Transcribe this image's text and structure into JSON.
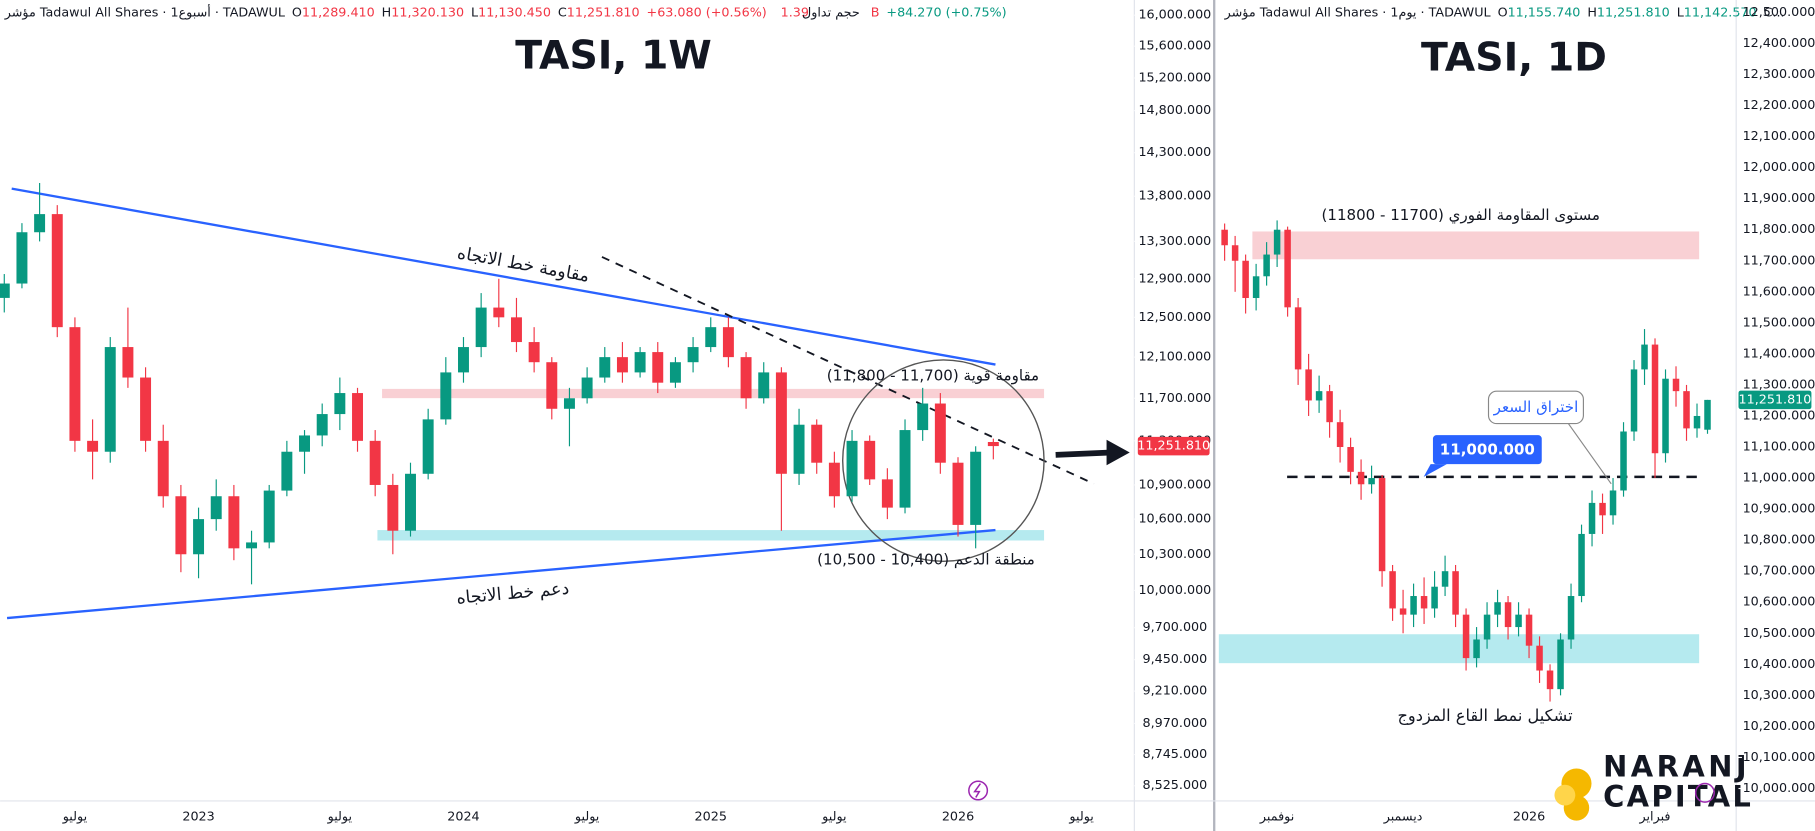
{
  "chart_data": [
    {
      "type": "candlestick",
      "title": "TASI, 1W",
      "log_scale": true,
      "grid": false,
      "up_color": "#089981",
      "down_color": "#f23645",
      "header": [
        {
          "text": "مؤشر Tadawul All Shares · 1أسبوع · TADAWUL",
          "color": "#131722"
        },
        {
          "text": "O",
          "color": "#131722"
        },
        {
          "text": "11,289.410",
          "color": "#f23645"
        },
        {
          "text": "H",
          "color": "#131722"
        },
        {
          "text": "11,320.130",
          "color": "#f23645"
        },
        {
          "text": "L",
          "color": "#131722"
        },
        {
          "text": "11,130.450",
          "color": "#f23645"
        },
        {
          "text": "C",
          "color": "#131722"
        },
        {
          "text": "11,251.810",
          "color": "#f23645"
        },
        {
          "text": "+63.080 (+0.56%)",
          "color": "#f23645"
        },
        {
          "text": "حجم تداول",
          "color": "#131722"
        },
        {
          "text": "1.39 B",
          "color": "#f23645"
        },
        {
          "text": "+84.270 (+0.75%)",
          "color": "#089981"
        }
      ],
      "categories": [
        null,
        null,
        null,
        null,
        "يوليو",
        null,
        null,
        null,
        null,
        null,
        null,
        "2023",
        null,
        null,
        null,
        null,
        null,
        null,
        null,
        "يوليو",
        null,
        null,
        null,
        null,
        null,
        null,
        "2024",
        null,
        null,
        null,
        null,
        null,
        null,
        "يوليو",
        null,
        null,
        null,
        null,
        null,
        null,
        "2025",
        null,
        null,
        null,
        null,
        null,
        null,
        "يوليو",
        null,
        null,
        null,
        null,
        null,
        null,
        "2026",
        null,
        null,
        null,
        null,
        null,
        null,
        "يوليو"
      ],
      "open": [
        12700,
        12850,
        13400,
        13600,
        12400,
        11300,
        11200,
        12200,
        11900,
        11300,
        10800,
        10300,
        10600,
        10800,
        10350,
        10400,
        10850,
        11200,
        11350,
        11550,
        11750,
        11300,
        10900,
        10500,
        11000,
        11500,
        11950,
        12200,
        12600,
        12500,
        12250,
        12050,
        11600,
        11700,
        11900,
        12100,
        11950,
        12150,
        11850,
        12050,
        12200,
        12400,
        12100,
        11700,
        11950,
        11000,
        11450,
        11100,
        10800,
        11300,
        10950,
        10700,
        11400,
        11650,
        11100,
        10550,
        11289.41,
        null,
        null,
        null,
        null,
        null
      ],
      "high": [
        12950,
        13500,
        13950,
        13700,
        12500,
        11500,
        12300,
        12600,
        12000,
        11450,
        10900,
        10700,
        10950,
        10900,
        10500,
        10900,
        11300,
        11400,
        11650,
        11900,
        11800,
        11400,
        11000,
        11100,
        11600,
        12100,
        12300,
        12750,
        12900,
        12700,
        12400,
        12100,
        11800,
        12000,
        12200,
        12250,
        12200,
        12250,
        12100,
        12300,
        12500,
        12500,
        12150,
        12050,
        12000,
        11600,
        11500,
        11200,
        11400,
        11350,
        11050,
        11500,
        11800,
        11750,
        11150,
        11250,
        11320.13,
        null,
        null,
        null,
        null,
        null
      ],
      "low": [
        12550,
        12800,
        13300,
        12300,
        11200,
        10950,
        11100,
        11800,
        11200,
        10700,
        10150,
        10100,
        10500,
        10250,
        10050,
        10350,
        10800,
        11000,
        11250,
        11400,
        11200,
        10800,
        10300,
        10450,
        10950,
        11450,
        11850,
        12100,
        12400,
        12150,
        11950,
        11500,
        11250,
        11650,
        11850,
        11850,
        11900,
        11750,
        11800,
        11950,
        12150,
        12000,
        11600,
        11650,
        10500,
        10900,
        11000,
        10700,
        10750,
        10900,
        10600,
        10650,
        11300,
        11000,
        10450,
        10350,
        11130.45,
        null,
        null,
        null,
        null,
        null
      ],
      "close": [
        12850,
        13400,
        13600,
        12400,
        11300,
        11200,
        12200,
        11900,
        11300,
        10800,
        10300,
        10600,
        10800,
        10350,
        10400,
        10850,
        11200,
        11350,
        11550,
        11750,
        11300,
        10900,
        10500,
        11000,
        11500,
        11950,
        12200,
        12600,
        12500,
        12250,
        12050,
        11600,
        11700,
        11900,
        12100,
        11950,
        12150,
        11850,
        12050,
        12200,
        12400,
        12100,
        11700,
        11950,
        11000,
        11450,
        11100,
        10800,
        11300,
        10950,
        10700,
        11400,
        11650,
        11100,
        10550,
        11200,
        11251.81,
        null,
        null,
        null,
        null,
        null
      ],
      "ylim": [
        8420,
        16200
      ],
      "yticks": [
        {
          "value": 16000,
          "label": "16,000.000"
        },
        {
          "value": 15600,
          "label": "15,600.000"
        },
        {
          "value": 15200,
          "label": "15,200.000"
        },
        {
          "value": 14800,
          "label": "14,800.000"
        },
        {
          "value": 14300,
          "label": "14,300.000"
        },
        {
          "value": 13800,
          "label": "13,800.000"
        },
        {
          "value": 13300,
          "label": "13,300.000"
        },
        {
          "value": 12900,
          "label": "12,900.000"
        },
        {
          "value": 12500,
          "label": "12,500.000"
        },
        {
          "value": 12100,
          "label": "12,100.000"
        },
        {
          "value": 11700,
          "label": "11,700.000"
        },
        {
          "value": 11300,
          "label": "11,300.000"
        },
        {
          "value": 10900,
          "label": "10,900.000"
        },
        {
          "value": 10600,
          "label": "10,600.000"
        },
        {
          "value": 10300,
          "label": "10,300.000"
        },
        {
          "value": 10000,
          "label": "10,000.000"
        },
        {
          "value": 9700,
          "label": "9,700.000"
        },
        {
          "value": 9450,
          "label": "9,450.000"
        },
        {
          "value": 9210,
          "label": "9,210.000"
        },
        {
          "value": 8970,
          "label": "8,970.000"
        },
        {
          "value": 8745,
          "label": "8,745.000"
        },
        {
          "value": 8525,
          "label": "8,525.000"
        }
      ],
      "last_price_label": "11,251.810",
      "annotations": {
        "trend_resistance": "مقاومة خط الاتجاه",
        "trend_support": "دعم خط الاتجاه",
        "strong_resistance": "مقاومة قوية (11,700 - 11,800)",
        "support_zone": "منطقة الدعم (10,400 - 10,500)"
      }
    },
    {
      "type": "candlestick",
      "title": "TASI, 1D",
      "log_scale": false,
      "grid": false,
      "up_color": "#089981",
      "down_color": "#f23645",
      "header": [
        {
          "text": "مؤشر Tadawul All Shares · 1يوم · TADAWUL",
          "color": "#131722"
        },
        {
          "text": "O",
          "color": "#131722"
        },
        {
          "text": "11,155.740",
          "color": "#089981"
        },
        {
          "text": "H",
          "color": "#131722"
        },
        {
          "text": "11,251.810",
          "color": "#089981"
        },
        {
          "text": "L",
          "color": "#131722"
        },
        {
          "text": "11,142.570",
          "color": "#089981"
        },
        {
          "text": "C...",
          "color": "#131722"
        }
      ],
      "categories": [
        null,
        null,
        null,
        null,
        null,
        "نوفمبر",
        null,
        null,
        null,
        null,
        null,
        null,
        null,
        null,
        null,
        null,
        null,
        "ديسمبر",
        null,
        null,
        null,
        null,
        null,
        null,
        null,
        null,
        null,
        null,
        null,
        "2026",
        null,
        null,
        null,
        null,
        null,
        null,
        null,
        null,
        null,
        null,
        null,
        "فبراير",
        null,
        null,
        null,
        null,
        null
      ],
      "open": [
        11800,
        11750,
        11700,
        11580,
        11650,
        11720,
        11800,
        11550,
        11350,
        11250,
        11280,
        11180,
        11100,
        11020,
        10980,
        11000,
        10700,
        10580,
        10560,
        10620,
        10580,
        10650,
        10700,
        10560,
        10420,
        10480,
        10560,
        10600,
        10520,
        10560,
        10460,
        10380,
        10320,
        10480,
        10620,
        10820,
        10920,
        10880,
        10960,
        11150,
        11350,
        11430,
        11080,
        11320,
        11280,
        11160,
        11155.74
      ],
      "high": [
        11820,
        11780,
        11720,
        11690,
        11760,
        11830,
        11810,
        11580,
        11400,
        11330,
        11300,
        11220,
        11130,
        11060,
        11040,
        11010,
        10720,
        10640,
        10660,
        10680,
        10700,
        10750,
        10720,
        10580,
        10520,
        10600,
        10640,
        10620,
        10600,
        10580,
        10490,
        10400,
        10500,
        10660,
        10850,
        10960,
        10950,
        11000,
        11180,
        11380,
        11480,
        11450,
        11350,
        11360,
        11300,
        11240,
        11251.81
      ],
      "low": [
        11700,
        11600,
        11530,
        11540,
        11620,
        11680,
        11520,
        11300,
        11200,
        11210,
        11130,
        11050,
        10980,
        10930,
        10950,
        10650,
        10540,
        10500,
        10520,
        10530,
        10550,
        10620,
        10520,
        10380,
        10390,
        10450,
        10520,
        10480,
        10490,
        10420,
        10340,
        10280,
        10300,
        10450,
        10600,
        10780,
        10820,
        10850,
        10940,
        11120,
        11300,
        11000,
        11050,
        11230,
        11120,
        11130,
        11142.57
      ],
      "close": [
        11750,
        11700,
        11580,
        11650,
        11720,
        11800,
        11550,
        11350,
        11250,
        11280,
        11180,
        11100,
        11020,
        10980,
        11000,
        10700,
        10580,
        10560,
        10620,
        10580,
        10650,
        10700,
        10560,
        10420,
        10480,
        10560,
        10600,
        10520,
        10560,
        10460,
        10380,
        10320,
        10480,
        10620,
        10820,
        10920,
        10880,
        10960,
        11150,
        11350,
        11430,
        11080,
        11320,
        11280,
        11160,
        11200,
        11251.81
      ],
      "ylim": [
        9960,
        12540
      ],
      "yticks": [
        {
          "value": 12500,
          "label": "12,500.000"
        },
        {
          "value": 12400,
          "label": "12,400.000"
        },
        {
          "value": 12300,
          "label": "12,300.000"
        },
        {
          "value": 12200,
          "label": "12,200.000"
        },
        {
          "value": 12100,
          "label": "12,100.000"
        },
        {
          "value": 12000,
          "label": "12,000.000"
        },
        {
          "value": 11900,
          "label": "11,900.000"
        },
        {
          "value": 11800,
          "label": "11,800.000"
        },
        {
          "value": 11700,
          "label": "11,700.000"
        },
        {
          "value": 11600,
          "label": "11,600.000"
        },
        {
          "value": 11500,
          "label": "11,500.000"
        },
        {
          "value": 11400,
          "label": "11,400.000"
        },
        {
          "value": 11300,
          "label": "11,300.000"
        },
        {
          "value": 11200,
          "label": "11,200.000"
        },
        {
          "value": 11100,
          "label": "11,100.000"
        },
        {
          "value": 11000,
          "label": "11,000.000"
        },
        {
          "value": 10900,
          "label": "10,900.000"
        },
        {
          "value": 10800,
          "label": "10,800.000"
        },
        {
          "value": 10700,
          "label": "10,700.000"
        },
        {
          "value": 10600,
          "label": "10,600.000"
        },
        {
          "value": 10500,
          "label": "10,500.000"
        },
        {
          "value": 10400,
          "label": "10,400.000"
        },
        {
          "value": 10300,
          "label": "10,300.000"
        },
        {
          "value": 10200,
          "label": "10,200.000"
        },
        {
          "value": 10100,
          "label": "10,100.000"
        },
        {
          "value": 10000,
          "label": "10,000.000"
        }
      ],
      "last_price_label": "11,251.810",
      "annotations": {
        "resistance_level": "مستوى المقاومة الفوري (11700 - 11800)",
        "breakout": "اختراق السعر",
        "breakout_level": "11,000.000",
        "double_bottom": "تشكيل نمط القاع المزدوج"
      }
    }
  ],
  "brand": {
    "line1": "NARANJ",
    "line2": "CAPITAL"
  }
}
